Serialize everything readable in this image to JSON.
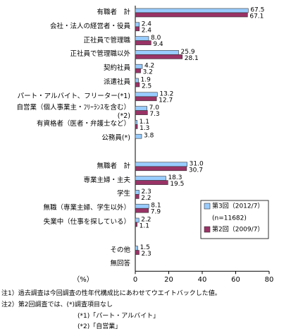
{
  "chart_data": {
    "type": "bar",
    "orientation": "horizontal",
    "categories": [
      "有職者　計",
      "会社・法人の経営者・役員",
      "正社員で管理職",
      "正社員で管理職以外",
      "契約社員",
      "派遣社員",
      "パート・アルバイト、フリーター(*1)",
      "自営業（個人事業主・ﾌﾘｰﾗﾝｽを含む）\n(*2)",
      "有資格者（医者・弁護士など）",
      "公務員(*)",
      null,
      "無職者　計",
      "専業主婦・主夫",
      "学生",
      "無職（専業主婦、学生以外）",
      "失業中（仕事を探している）",
      null,
      "その他",
      "無回答"
    ],
    "series": [
      {
        "name": "第3回（2012/7）",
        "color": "#99ccff",
        "values": [
          67.5,
          2.4,
          8.0,
          25.9,
          4.2,
          1.9,
          13.2,
          7.0,
          1.1,
          3.8,
          null,
          31.0,
          18.3,
          2.3,
          8.1,
          2.2,
          null,
          1.5,
          null
        ],
        "value_labels": [
          "67.5",
          "2.4",
          "8.0",
          "25.9",
          "4.2",
          "1.9",
          "13.2",
          "7.0",
          "1.1",
          "3.8",
          null,
          "31.0",
          "18.3",
          "2.3",
          "8.1",
          "2.2",
          null,
          "1.5",
          null
        ]
      },
      {
        "name": "第2回（2009/7）",
        "color": "#993366",
        "values": [
          67.1,
          2.4,
          9.4,
          28.1,
          3.2,
          2.5,
          12.7,
          7.3,
          1.3,
          null,
          null,
          30.7,
          19.5,
          2.2,
          7.9,
          1.1,
          null,
          2.3,
          null
        ],
        "value_labels": [
          "67.1",
          "2.4",
          "9.4",
          "28.1",
          "3.2",
          "2.5",
          "12.7",
          "7.3",
          "1.3",
          null,
          null,
          "30.7",
          "19.5",
          "2.2",
          "7.9",
          "1.1",
          null,
          "2.3",
          null
        ]
      }
    ],
    "legend_note": "(n=11682)",
    "x_label": "（%）",
    "xlim": [
      0,
      80
    ],
    "xticks": [
      0,
      20,
      40,
      60,
      80
    ],
    "notes": [
      "注1）過去調査は今回調査の性年代構成比にあわせてウエイトバックした値。",
      "注2）第2回調査では、(*)調査項目なし",
      "(*1)「パート・アルバイト」",
      "(*2)「自営業」"
    ]
  }
}
